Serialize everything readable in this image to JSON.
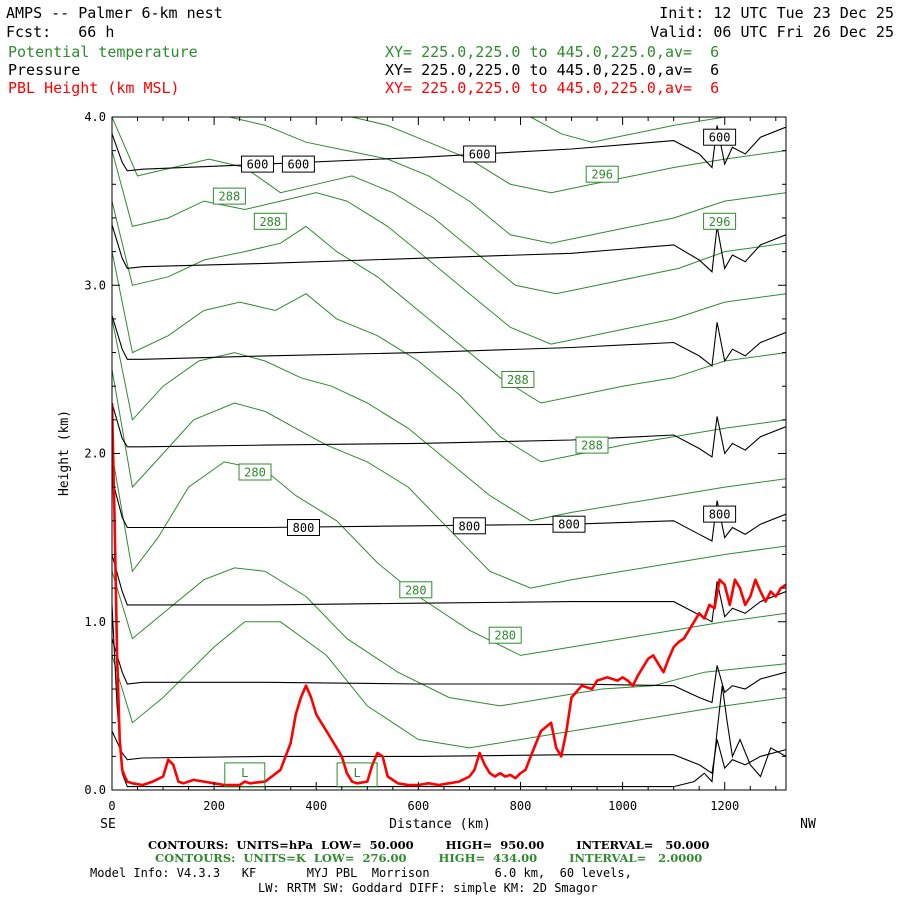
{
  "header": {
    "title": "AMPS -- Palmer 6-km nest",
    "init": "Init: 12 UTC Tue 23 Dec 25",
    "fcst": "Fcst:   66 h",
    "valid": "Valid: 06 UTC Fri 26 Dec 25",
    "fields": [
      {
        "name": "Potential temperature",
        "xy": "XY= 225.0,225.0 to 445.0,225.0,av=  6",
        "color": "#2e8b2e"
      },
      {
        "name": "Pressure",
        "xy": "XY= 225.0,225.0 to 445.0,225.0,av=  6",
        "color": "#000000"
      },
      {
        "name": "PBL Height (km MSL)",
        "xy": "XY= 225.0,225.0 to 445.0,225.0,av=  6",
        "color": "#ff0000"
      }
    ]
  },
  "footer": {
    "contours_p": "CONTOURS:  UNITS=hPa  LOW=  50.000        HIGH=  950.00        INTERVAL=   50.000",
    "contours_t": "CONTOURS:  UNITS=K  LOW=  276.00        HIGH=  434.00        INTERVAL=   2.0000",
    "model_info": "Model Info: V4.3.3   KF       MYJ PBL  Morrison         6.0 km,  60 levels,",
    "model_info2": "LW: RRTM SW: Goddard DIFF: simple KM: 2D Smagor"
  },
  "colors": {
    "pressure": "#000000",
    "theta": "#2e8b2e",
    "pbl": "#ff0000"
  },
  "chart_data": {
    "type": "line",
    "xlabel": "Distance (km)",
    "ylabel": "Height (km)",
    "x_start_label": "SE",
    "x_end_label": "NW",
    "xlim": [
      0,
      1320
    ],
    "ylim": [
      0,
      4.0
    ],
    "xticks": [
      0,
      200,
      400,
      600,
      800,
      1000,
      1200
    ],
    "xtick_labels": [
      "0",
      "200",
      "400",
      "600",
      "800",
      "1000",
      "1200"
    ],
    "yticks": [
      0,
      1,
      2,
      3,
      4
    ],
    "ytick_labels": [
      "0.0",
      "1.0",
      "2.0",
      "3.0",
      "4.0"
    ],
    "pressure_labels": [
      {
        "text": "600",
        "x": 285,
        "y": 3.72
      },
      {
        "text": "600",
        "x": 365,
        "y": 3.72
      },
      {
        "text": "600",
        "x": 720,
        "y": 3.78
      },
      {
        "text": "600",
        "x": 1190,
        "y": 3.88
      },
      {
        "text": "800",
        "x": 375,
        "y": 1.56
      },
      {
        "text": "800",
        "x": 700,
        "y": 1.57
      },
      {
        "text": "800",
        "x": 895,
        "y": 1.58
      },
      {
        "text": "800",
        "x": 1190,
        "y": 1.64
      }
    ],
    "theta_labels": [
      {
        "text": "288",
        "x": 230,
        "y": 3.53
      },
      {
        "text": "288",
        "x": 310,
        "y": 3.38
      },
      {
        "text": "296",
        "x": 960,
        "y": 3.66
      },
      {
        "text": "296",
        "x": 1190,
        "y": 3.38
      },
      {
        "text": "288",
        "x": 795,
        "y": 2.44
      },
      {
        "text": "288",
        "x": 940,
        "y": 2.05
      },
      {
        "text": "280",
        "x": 280,
        "y": 1.89
      },
      {
        "text": "280",
        "x": 595,
        "y": 1.19
      },
      {
        "text": "280",
        "x": 770,
        "y": 0.92
      }
    ],
    "pressure_levels": [
      {
        "x": [
          0,
          20,
          30,
          60,
          300,
          600,
          900,
          1100,
          1150,
          1175,
          1185,
          1200,
          1215,
          1240,
          1270,
          1320
        ],
        "y": [
          0.9,
          0.7,
          0.63,
          0.64,
          0.64,
          0.63,
          0.63,
          0.62,
          0.55,
          0.52,
          0.74,
          0.58,
          0.62,
          0.6,
          0.66,
          0.7
        ]
      },
      {
        "x": [
          0,
          20,
          30,
          60,
          300,
          600,
          900,
          1100,
          1150,
          1175,
          1185,
          1200,
          1215,
          1240,
          1270,
          1320
        ],
        "y": [
          1.4,
          1.18,
          1.1,
          1.1,
          1.1,
          1.11,
          1.12,
          1.12,
          1.04,
          1.0,
          1.24,
          1.03,
          1.08,
          1.05,
          1.12,
          1.18
        ]
      },
      {
        "x": [
          0,
          20,
          30,
          60,
          300,
          600,
          900,
          1100,
          1150,
          1175,
          1185,
          1200,
          1215,
          1240,
          1270,
          1320
        ],
        "y": [
          1.85,
          1.62,
          1.56,
          1.56,
          1.56,
          1.57,
          1.58,
          1.6,
          1.52,
          1.48,
          1.72,
          1.5,
          1.56,
          1.52,
          1.58,
          1.64
        ]
      },
      {
        "x": [
          0,
          20,
          30,
          60,
          300,
          600,
          900,
          1100,
          1150,
          1175,
          1185,
          1200,
          1215,
          1240,
          1270,
          1320
        ],
        "y": [
          2.3,
          2.09,
          2.04,
          2.04,
          2.05,
          2.06,
          2.08,
          2.11,
          2.03,
          1.98,
          2.22,
          2.0,
          2.06,
          2.02,
          2.1,
          2.16
        ]
      },
      {
        "x": [
          0,
          20,
          30,
          60,
          300,
          600,
          900,
          1100,
          1150,
          1175,
          1185,
          1200,
          1215,
          1240,
          1270,
          1320
        ],
        "y": [
          2.82,
          2.62,
          2.56,
          2.56,
          2.58,
          2.6,
          2.63,
          2.66,
          2.58,
          2.52,
          2.78,
          2.55,
          2.62,
          2.58,
          2.66,
          2.72
        ]
      },
      {
        "x": [
          0,
          20,
          30,
          60,
          300,
          600,
          900,
          1100,
          1150,
          1175,
          1185,
          1200,
          1215,
          1240,
          1270,
          1320
        ],
        "y": [
          3.36,
          3.16,
          3.1,
          3.11,
          3.13,
          3.16,
          3.19,
          3.24,
          3.15,
          3.08,
          3.35,
          3.1,
          3.18,
          3.14,
          3.24,
          3.3
        ]
      },
      {
        "x": [
          0,
          20,
          30,
          60,
          300,
          600,
          900,
          1100,
          1150,
          1175,
          1185,
          1200,
          1215,
          1240,
          1270,
          1320
        ],
        "y": [
          3.9,
          3.73,
          3.68,
          3.69,
          3.72,
          3.76,
          3.81,
          3.86,
          3.78,
          3.7,
          3.95,
          3.72,
          3.82,
          3.78,
          3.88,
          3.94
        ]
      },
      {
        "x": [
          0,
          20,
          30,
          60,
          300,
          600,
          900,
          1100,
          1150,
          1175,
          1185,
          1200,
          1215,
          1240,
          1270,
          1320
        ],
        "y": [
          0.35,
          0.22,
          0.18,
          0.19,
          0.2,
          0.2,
          0.21,
          0.21,
          0.15,
          0.1,
          0.3,
          0.13,
          0.18,
          0.15,
          0.2,
          0.24
        ]
      },
      {
        "x": [
          0,
          10,
          20,
          30,
          1100,
          1140,
          1160,
          1175,
          1185,
          1195,
          1205,
          1215,
          1230,
          1250,
          1270,
          1290,
          1320
        ],
        "y": [
          1.1,
          0.5,
          0.1,
          0.02,
          0.02,
          0.05,
          0.1,
          0.05,
          0.35,
          0.62,
          0.4,
          0.2,
          0.3,
          0.15,
          0.08,
          0.25,
          0.2
        ]
      }
    ],
    "theta_contours": [
      {
        "x": [
          0,
          40,
          100,
          150,
          200,
          260,
          330,
          420,
          500,
          600,
          700,
          800,
          900,
          1000,
          1100,
          1200,
          1320
        ],
        "y": [
          0.8,
          0.4,
          0.55,
          0.7,
          0.85,
          1.0,
          1.0,
          0.8,
          0.5,
          0.3,
          0.25,
          0.3,
          0.35,
          0.4,
          0.45,
          0.5,
          0.55
        ]
      },
      {
        "x": [
          0,
          40,
          100,
          180,
          240,
          300,
          380,
          460,
          560,
          660,
          760,
          860,
          960,
          1060,
          1160,
          1320
        ],
        "y": [
          1.3,
          0.9,
          1.05,
          1.25,
          1.32,
          1.3,
          1.15,
          0.9,
          0.7,
          0.55,
          0.5,
          0.55,
          0.6,
          0.62,
          0.7,
          0.75
        ]
      },
      {
        "x": [
          0,
          40,
          90,
          150,
          220,
          300,
          360,
          440,
          520,
          600,
          700,
          800,
          900,
          1000,
          1100,
          1200,
          1320
        ],
        "y": [
          2.0,
          1.3,
          1.5,
          1.8,
          1.95,
          1.9,
          1.75,
          1.6,
          1.35,
          1.15,
          0.95,
          0.8,
          0.85,
          0.9,
          0.95,
          1.0,
          1.05
        ]
      },
      {
        "x": [
          0,
          40,
          100,
          160,
          240,
          300,
          360,
          420,
          500,
          580,
          660,
          740,
          820,
          900,
          1000,
          1100,
          1200,
          1320
        ],
        "y": [
          2.5,
          1.8,
          2.0,
          2.2,
          2.3,
          2.25,
          2.15,
          2.05,
          1.95,
          1.8,
          1.55,
          1.3,
          1.2,
          1.25,
          1.3,
          1.35,
          1.4,
          1.45
        ]
      },
      {
        "x": [
          0,
          40,
          100,
          170,
          240,
          300,
          370,
          430,
          500,
          580,
          660,
          740,
          820,
          900,
          1000,
          1100,
          1200,
          1320
        ],
        "y": [
          2.8,
          2.2,
          2.4,
          2.55,
          2.6,
          2.55,
          2.45,
          2.4,
          2.3,
          2.15,
          1.95,
          1.75,
          1.6,
          1.65,
          1.7,
          1.75,
          1.8,
          1.85
        ]
      },
      {
        "x": [
          0,
          40,
          110,
          180,
          250,
          320,
          380,
          440,
          520,
          600,
          680,
          760,
          840,
          920,
          1000,
          1100,
          1200,
          1320
        ],
        "y": [
          3.2,
          2.6,
          2.7,
          2.85,
          2.9,
          2.85,
          2.95,
          2.8,
          2.7,
          2.55,
          2.35,
          2.1,
          1.95,
          2.0,
          2.05,
          2.1,
          2.15,
          2.2
        ]
      },
      {
        "x": [
          0,
          40,
          110,
          180,
          260,
          330,
          380,
          440,
          520,
          600,
          680,
          760,
          840,
          920,
          1000,
          1100,
          1200,
          1320
        ],
        "y": [
          3.5,
          3.0,
          3.05,
          3.15,
          3.2,
          3.25,
          3.35,
          3.2,
          3.05,
          2.85,
          2.65,
          2.45,
          2.3,
          2.35,
          2.4,
          2.45,
          2.55,
          2.6
        ]
      },
      {
        "x": [
          0,
          40,
          110,
          180,
          260,
          330,
          400,
          460,
          540,
          620,
          700,
          780,
          860,
          940,
          1020,
          1100,
          1200,
          1320
        ],
        "y": [
          3.8,
          3.35,
          3.4,
          3.5,
          3.45,
          3.5,
          3.55,
          3.5,
          3.35,
          3.15,
          2.95,
          2.75,
          2.65,
          2.7,
          2.75,
          2.8,
          2.9,
          2.95
        ]
      },
      {
        "x": [
          0,
          50,
          120,
          190,
          260,
          330,
          400,
          470,
          550,
          630,
          710,
          790,
          870,
          950,
          1030,
          1110,
          1200,
          1320
        ],
        "y": [
          4.0,
          3.65,
          3.7,
          3.75,
          3.7,
          3.55,
          3.6,
          3.65,
          3.55,
          3.4,
          3.2,
          3.0,
          2.95,
          3.0,
          3.05,
          3.1,
          3.2,
          3.25
        ]
      },
      {
        "x": [
          230,
          300,
          380,
          460,
          540,
          620,
          700,
          780,
          860,
          940,
          1020,
          1100,
          1200,
          1320
        ],
        "y": [
          4.0,
          3.95,
          3.85,
          3.8,
          3.75,
          3.65,
          3.5,
          3.3,
          3.25,
          3.3,
          3.35,
          3.4,
          3.5,
          3.55
        ]
      },
      {
        "x": [
          470,
          540,
          620,
          700,
          780,
          860,
          940,
          1020,
          1100,
          1200,
          1320
        ],
        "y": [
          4.0,
          3.95,
          3.85,
          3.75,
          3.6,
          3.55,
          3.6,
          3.65,
          3.7,
          3.75,
          3.8
        ]
      },
      {
        "x": [
          820,
          880,
          940,
          1020,
          1100,
          1200,
          1320
        ],
        "y": [
          4.0,
          3.9,
          3.85,
          3.9,
          3.95,
          4.0,
          4.0
        ]
      }
    ],
    "theta_small_contours": [
      {
        "text": "L",
        "x": 260,
        "y": 0.09
      },
      {
        "text": "L",
        "x": 480,
        "y": 0.09
      }
    ],
    "pbl_height": {
      "x": [
        0,
        5,
        10,
        15,
        20,
        25,
        30,
        40,
        60,
        80,
        100,
        110,
        120,
        130,
        140,
        160,
        180,
        200,
        220,
        250,
        260,
        270,
        300,
        330,
        350,
        360,
        370,
        380,
        390,
        400,
        410,
        420,
        430,
        440,
        450,
        460,
        470,
        480,
        500,
        510,
        520,
        530,
        540,
        560,
        580,
        600,
        620,
        640,
        660,
        680,
        700,
        710,
        720,
        730,
        740,
        750,
        760,
        770,
        780,
        790,
        800,
        810,
        820,
        840,
        860,
        870,
        880,
        890,
        900,
        920,
        940,
        950,
        970,
        990,
        1000,
        1010,
        1020,
        1030,
        1040,
        1050,
        1060,
        1070,
        1080,
        1090,
        1100,
        1110,
        1120,
        1130,
        1140,
        1150,
        1160,
        1170,
        1180,
        1190,
        1200,
        1210,
        1220,
        1230,
        1240,
        1250,
        1260,
        1270,
        1280,
        1290,
        1300,
        1310,
        1320
      ],
      "y": [
        2.3,
        1.6,
        0.8,
        0.3,
        0.12,
        0.08,
        0.05,
        0.04,
        0.03,
        0.05,
        0.08,
        0.18,
        0.15,
        0.05,
        0.04,
        0.06,
        0.05,
        0.04,
        0.03,
        0.03,
        0.05,
        0.04,
        0.05,
        0.12,
        0.28,
        0.45,
        0.55,
        0.62,
        0.55,
        0.45,
        0.4,
        0.35,
        0.3,
        0.25,
        0.2,
        0.1,
        0.05,
        0.04,
        0.05,
        0.15,
        0.22,
        0.2,
        0.08,
        0.04,
        0.03,
        0.03,
        0.04,
        0.03,
        0.04,
        0.05,
        0.08,
        0.12,
        0.22,
        0.15,
        0.1,
        0.08,
        0.1,
        0.08,
        0.09,
        0.07,
        0.1,
        0.12,
        0.2,
        0.35,
        0.4,
        0.25,
        0.2,
        0.35,
        0.55,
        0.62,
        0.6,
        0.65,
        0.67,
        0.65,
        0.67,
        0.65,
        0.62,
        0.68,
        0.73,
        0.78,
        0.8,
        0.75,
        0.7,
        0.78,
        0.85,
        0.88,
        0.9,
        0.95,
        1.0,
        1.05,
        1.02,
        1.1,
        1.08,
        1.25,
        1.22,
        1.1,
        1.25,
        1.2,
        1.1,
        1.15,
        1.25,
        1.18,
        1.12,
        1.18,
        1.15,
        1.2,
        1.22
      ]
    }
  }
}
